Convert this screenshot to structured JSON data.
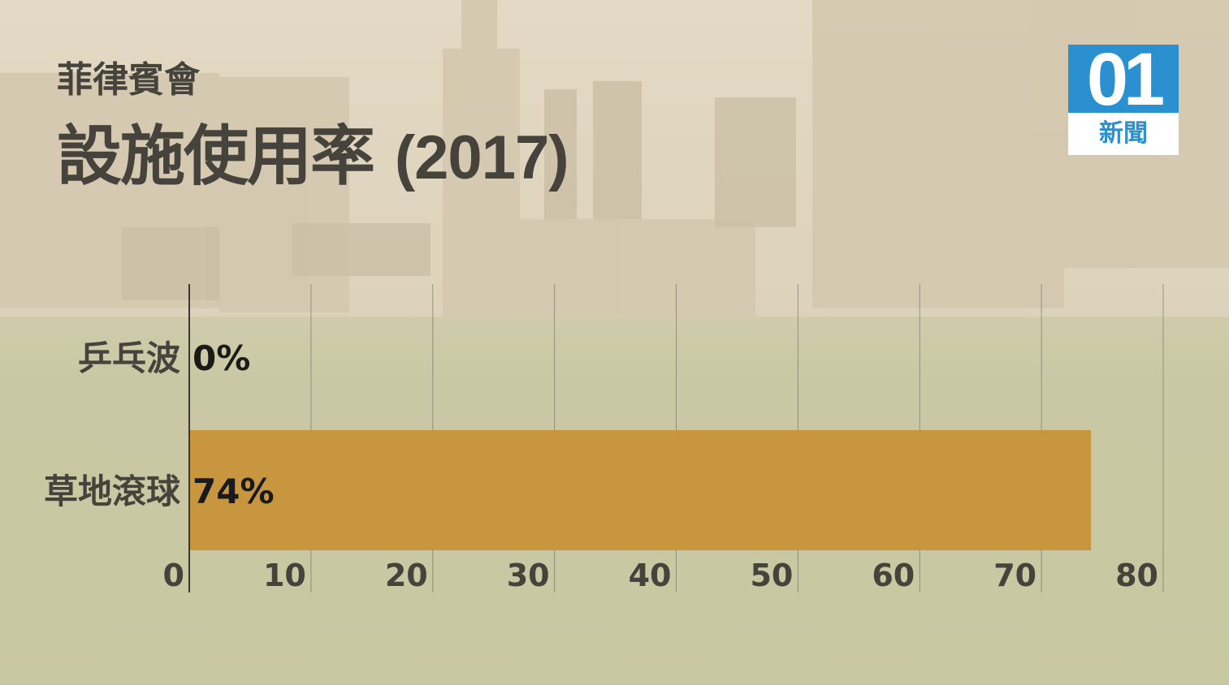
{
  "header": {
    "subtitle": "菲律賓會",
    "title_main": "設施使用率",
    "title_year": "(2017)"
  },
  "logo": {
    "number": "01",
    "text": "新聞"
  },
  "colors": {
    "bar": "#c99640",
    "text": "#46423c",
    "label_dark": "#1a1a1a",
    "grid": "#6e6a5c",
    "logo_blue": "#2a90cf"
  },
  "chart_data": {
    "type": "bar",
    "orientation": "horizontal",
    "categories": [
      "乒乓波",
      "草地滾球"
    ],
    "values": [
      0,
      74
    ],
    "value_labels": [
      "0%",
      "74%"
    ],
    "title": "設施使用率 (2017)",
    "xlim": [
      0,
      80
    ],
    "xticks": [
      0,
      10,
      20,
      30,
      40,
      50,
      60,
      70,
      80
    ],
    "grid": "vertical"
  }
}
